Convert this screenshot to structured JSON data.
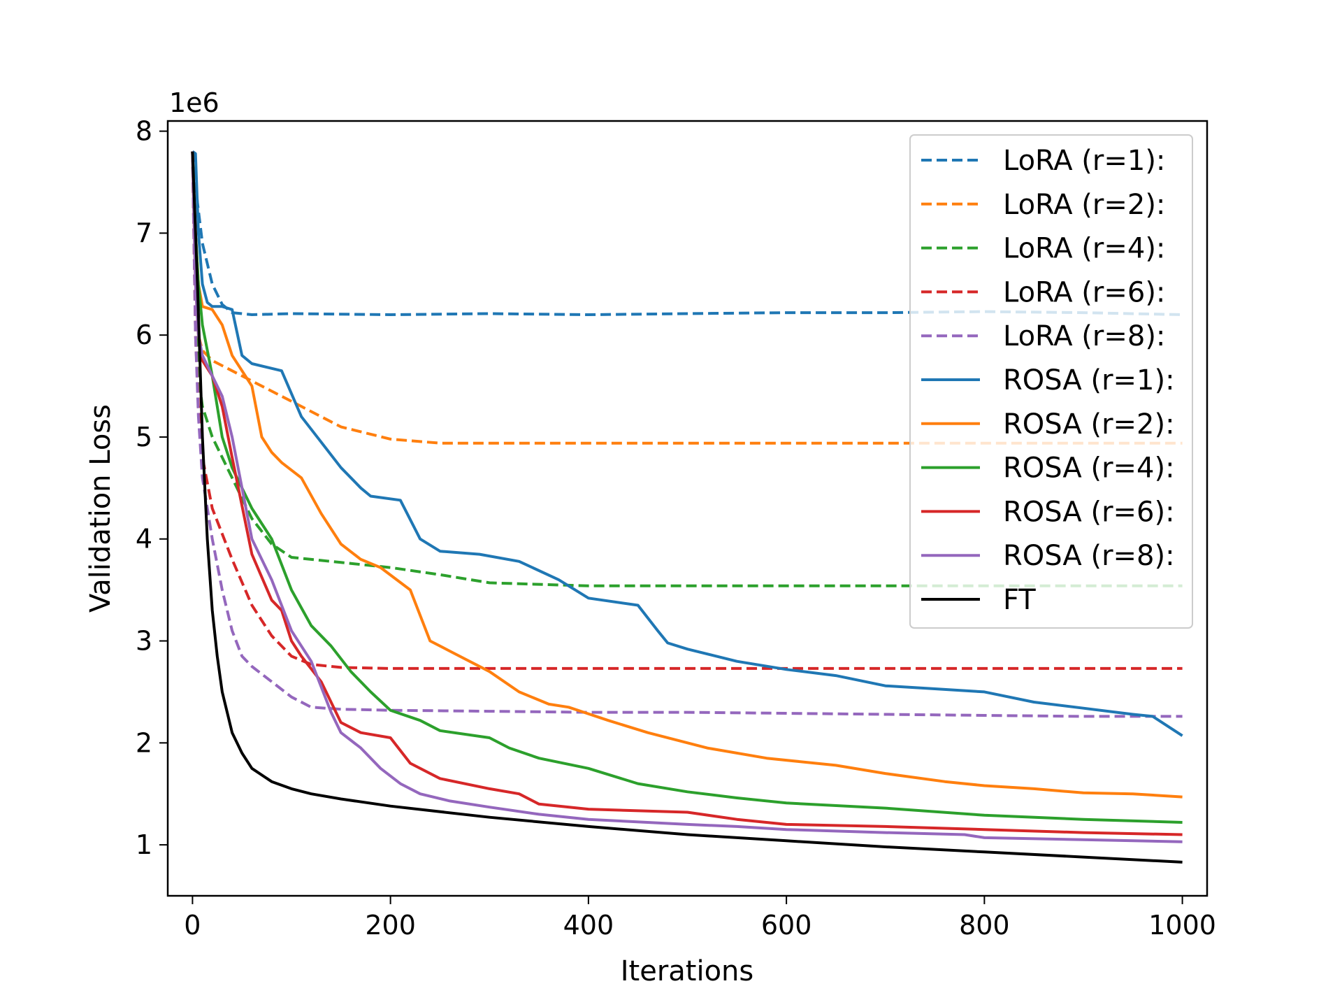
{
  "chart_data": {
    "type": "line",
    "title": "",
    "xlabel": "Iterations",
    "ylabel": "Validation Loss",
    "y_offset_label": "1e6",
    "xlim": [
      -25,
      1025
    ],
    "ylim": [
      0.5,
      8.1
    ],
    "xticks": [
      0,
      200,
      400,
      600,
      800,
      1000
    ],
    "yticks": [
      1,
      2,
      3,
      4,
      5,
      6,
      7,
      8
    ],
    "legend_position": "top-right",
    "series": [
      {
        "name": "LoRA (r=1):",
        "color": "#1f77b4",
        "style": "dashed",
        "x": [
          0,
          5,
          10,
          20,
          30,
          40,
          60,
          100,
          200,
          300,
          400,
          500,
          600,
          700,
          800,
          900,
          1000
        ],
        "y": [
          7.8,
          7.3,
          6.9,
          6.5,
          6.3,
          6.22,
          6.2,
          6.21,
          6.2,
          6.21,
          6.2,
          6.21,
          6.22,
          6.22,
          6.23,
          6.22,
          6.2
        ]
      },
      {
        "name": "LoRA (r=2):",
        "color": "#ff7f0e",
        "style": "dashed",
        "x": [
          0,
          3,
          6,
          10,
          20,
          50,
          100,
          150,
          200,
          250,
          300,
          400,
          500,
          600,
          700,
          800,
          900,
          1000
        ],
        "y": [
          7.8,
          6.6,
          6.0,
          5.85,
          5.75,
          5.6,
          5.35,
          5.1,
          4.98,
          4.94,
          4.94,
          4.94,
          4.94,
          4.94,
          4.94,
          4.94,
          4.94,
          4.94
        ]
      },
      {
        "name": "LoRA (r=4):",
        "color": "#2ca02c",
        "style": "dashed",
        "x": [
          0,
          3,
          6,
          10,
          20,
          40,
          60,
          80,
          100,
          150,
          200,
          250,
          300,
          400,
          500,
          600,
          700,
          800,
          900,
          1000
        ],
        "y": [
          7.8,
          6.2,
          5.6,
          5.3,
          5.0,
          4.6,
          4.2,
          3.95,
          3.82,
          3.77,
          3.72,
          3.65,
          3.57,
          3.54,
          3.54,
          3.54,
          3.54,
          3.54,
          3.54,
          3.54
        ]
      },
      {
        "name": "LoRA (r=6):",
        "color": "#d62728",
        "style": "dashed",
        "x": [
          0,
          3,
          6,
          10,
          20,
          40,
          60,
          80,
          100,
          120,
          150,
          200,
          300,
          400,
          500,
          600,
          700,
          800,
          900,
          1000
        ],
        "y": [
          7.8,
          6.0,
          5.3,
          4.8,
          4.3,
          3.8,
          3.35,
          3.05,
          2.85,
          2.77,
          2.74,
          2.73,
          2.73,
          2.73,
          2.73,
          2.73,
          2.73,
          2.73,
          2.73,
          2.73
        ]
      },
      {
        "name": "LoRA (r=8):",
        "color": "#9467bd",
        "style": "dashed",
        "x": [
          0,
          3,
          6,
          10,
          20,
          30,
          40,
          50,
          60,
          80,
          100,
          120,
          150,
          200,
          300,
          400,
          500,
          600,
          700,
          800,
          900,
          1000
        ],
        "y": [
          7.8,
          6.0,
          5.2,
          4.6,
          4.0,
          3.5,
          3.1,
          2.85,
          2.75,
          2.6,
          2.45,
          2.35,
          2.33,
          2.32,
          2.31,
          2.3,
          2.3,
          2.29,
          2.28,
          2.27,
          2.26,
          2.26
        ]
      },
      {
        "name": "ROSA (r=1):",
        "color": "#1f77b4",
        "style": "solid",
        "x": [
          0,
          3,
          6,
          10,
          15,
          20,
          30,
          40,
          50,
          60,
          90,
          110,
          130,
          150,
          170,
          180,
          210,
          230,
          250,
          290,
          330,
          370,
          400,
          450,
          470,
          480,
          500,
          550,
          600,
          650,
          700,
          750,
          800,
          850,
          900,
          950,
          970,
          1000
        ],
        "y": [
          7.8,
          7.78,
          7.0,
          6.5,
          6.32,
          6.28,
          6.28,
          6.25,
          5.8,
          5.72,
          5.65,
          5.2,
          4.95,
          4.7,
          4.5,
          4.42,
          4.38,
          4.0,
          3.88,
          3.85,
          3.78,
          3.6,
          3.42,
          3.35,
          3.1,
          2.98,
          2.92,
          2.8,
          2.72,
          2.66,
          2.56,
          2.53,
          2.5,
          2.4,
          2.34,
          2.28,
          2.26,
          2.07
        ]
      },
      {
        "name": "ROSA (r=2):",
        "color": "#ff7f0e",
        "style": "solid",
        "x": [
          0,
          3,
          6,
          10,
          20,
          30,
          40,
          60,
          70,
          80,
          90,
          110,
          130,
          150,
          170,
          190,
          220,
          240,
          260,
          300,
          330,
          360,
          380,
          420,
          460,
          520,
          580,
          650,
          700,
          760,
          800,
          850,
          900,
          950,
          1000
        ],
        "y": [
          7.8,
          7.0,
          6.5,
          6.28,
          6.25,
          6.1,
          5.8,
          5.5,
          5.0,
          4.85,
          4.75,
          4.6,
          4.25,
          3.95,
          3.8,
          3.72,
          3.5,
          3.0,
          2.9,
          2.7,
          2.5,
          2.38,
          2.35,
          2.22,
          2.1,
          1.95,
          1.85,
          1.78,
          1.7,
          1.62,
          1.58,
          1.55,
          1.51,
          1.5,
          1.47
        ]
      },
      {
        "name": "ROSA (r=4):",
        "color": "#2ca02c",
        "style": "solid",
        "x": [
          0,
          3,
          6,
          10,
          20,
          30,
          40,
          60,
          80,
          100,
          120,
          140,
          160,
          180,
          200,
          230,
          250,
          300,
          320,
          350,
          400,
          450,
          500,
          550,
          600,
          700,
          800,
          900,
          1000
        ],
        "y": [
          7.8,
          7.0,
          6.5,
          6.1,
          5.6,
          5.0,
          4.7,
          4.3,
          4.0,
          3.5,
          3.15,
          2.95,
          2.7,
          2.5,
          2.32,
          2.22,
          2.12,
          2.05,
          1.95,
          1.85,
          1.75,
          1.6,
          1.52,
          1.46,
          1.41,
          1.36,
          1.29,
          1.25,
          1.22
        ]
      },
      {
        "name": "ROSA (r=6):",
        "color": "#d62728",
        "style": "solid",
        "x": [
          0,
          3,
          6,
          10,
          20,
          30,
          40,
          60,
          80,
          90,
          100,
          110,
          130,
          150,
          170,
          200,
          220,
          250,
          300,
          330,
          350,
          400,
          500,
          550,
          600,
          700,
          800,
          900,
          1000
        ],
        "y": [
          7.8,
          6.5,
          6.0,
          5.75,
          5.6,
          5.3,
          4.8,
          3.85,
          3.4,
          3.3,
          3.0,
          2.85,
          2.6,
          2.2,
          2.1,
          2.05,
          1.8,
          1.65,
          1.55,
          1.5,
          1.4,
          1.35,
          1.32,
          1.25,
          1.2,
          1.18,
          1.15,
          1.12,
          1.1
        ]
      },
      {
        "name": "ROSA (r=8):",
        "color": "#9467bd",
        "style": "solid",
        "x": [
          0,
          3,
          6,
          10,
          20,
          30,
          40,
          60,
          80,
          100,
          120,
          140,
          150,
          170,
          190,
          210,
          230,
          260,
          300,
          350,
          400,
          500,
          550,
          600,
          700,
          780,
          800,
          900,
          1000
        ],
        "y": [
          7.8,
          6.5,
          6.0,
          5.8,
          5.6,
          5.4,
          5.0,
          4.0,
          3.6,
          3.1,
          2.8,
          2.3,
          2.1,
          1.95,
          1.75,
          1.6,
          1.5,
          1.43,
          1.37,
          1.3,
          1.25,
          1.2,
          1.18,
          1.15,
          1.12,
          1.1,
          1.07,
          1.05,
          1.03
        ]
      },
      {
        "name": "FT",
        "color": "#000000",
        "style": "solid",
        "x": [
          0,
          5,
          10,
          15,
          20,
          25,
          30,
          40,
          50,
          60,
          80,
          100,
          120,
          150,
          200,
          300,
          400,
          500,
          600,
          700,
          800,
          900,
          1000
        ],
        "y": [
          7.8,
          6.5,
          5.0,
          4.0,
          3.3,
          2.85,
          2.5,
          2.1,
          1.9,
          1.75,
          1.62,
          1.55,
          1.5,
          1.45,
          1.38,
          1.27,
          1.18,
          1.1,
          1.04,
          0.98,
          0.93,
          0.88,
          0.83
        ]
      }
    ]
  }
}
